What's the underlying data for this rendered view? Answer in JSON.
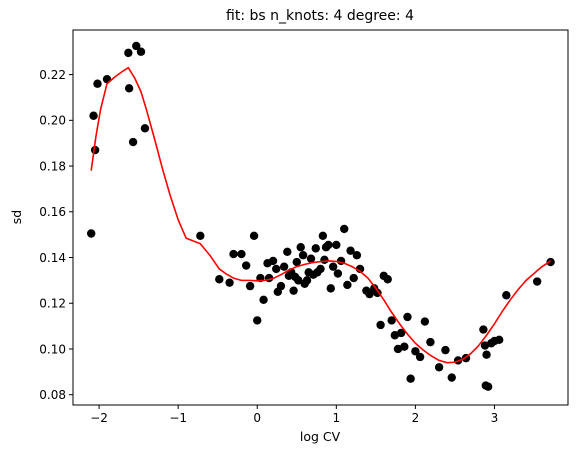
{
  "chart_data": {
    "type": "scatter",
    "title": "fit: bs n_knots: 4 degree: 4",
    "xlabel": "log CV",
    "ylabel": "sd",
    "xlim": [
      -2.33,
      3.93
    ],
    "ylim": [
      0.0755,
      0.2395
    ],
    "xticks": [
      -2,
      -1,
      0,
      1,
      2,
      3
    ],
    "xtick_labels": [
      "−2",
      "−1",
      "0",
      "1",
      "2",
      "3"
    ],
    "yticks": [
      0.08,
      0.1,
      0.12,
      0.14,
      0.16,
      0.18,
      0.2,
      0.22
    ],
    "ytick_labels": [
      "0.08",
      "0.10",
      "0.12",
      "0.14",
      "0.16",
      "0.18",
      "0.20",
      "0.22"
    ],
    "grid": false,
    "legend": false,
    "colors": {
      "points": "#000000",
      "fit": "#ff0000"
    },
    "series": [
      {
        "kind": "scatter",
        "points": [
          [
            -2.1,
            0.1505
          ],
          [
            -2.07,
            0.202
          ],
          [
            -2.05,
            0.187
          ],
          [
            -2.02,
            0.216
          ],
          [
            -1.9,
            0.218
          ],
          [
            -1.63,
            0.2295
          ],
          [
            -1.62,
            0.214
          ],
          [
            -1.57,
            0.1905
          ],
          [
            -1.53,
            0.2325
          ],
          [
            -1.47,
            0.23
          ],
          [
            -1.42,
            0.1965
          ],
          [
            -0.72,
            0.1495
          ],
          [
            -0.48,
            0.1305
          ],
          [
            -0.35,
            0.129
          ],
          [
            -0.3,
            0.1415
          ],
          [
            -0.2,
            0.1415
          ],
          [
            -0.14,
            0.1365
          ],
          [
            -0.09,
            0.1275
          ],
          [
            -0.04,
            0.1495
          ],
          [
            0.0,
            0.1125
          ],
          [
            0.04,
            0.131
          ],
          [
            0.08,
            0.1215
          ],
          [
            0.13,
            0.1375
          ],
          [
            0.15,
            0.131
          ],
          [
            0.2,
            0.1385
          ],
          [
            0.24,
            0.135
          ],
          [
            0.26,
            0.125
          ],
          [
            0.3,
            0.1275
          ],
          [
            0.34,
            0.136
          ],
          [
            0.38,
            0.1425
          ],
          [
            0.4,
            0.132
          ],
          [
            0.43,
            0.1335
          ],
          [
            0.46,
            0.1255
          ],
          [
            0.48,
            0.1315
          ],
          [
            0.5,
            0.138
          ],
          [
            0.52,
            0.13
          ],
          [
            0.55,
            0.1445
          ],
          [
            0.58,
            0.141
          ],
          [
            0.6,
            0.1285
          ],
          [
            0.63,
            0.13
          ],
          [
            0.65,
            0.1335
          ],
          [
            0.68,
            0.1395
          ],
          [
            0.71,
            0.1325
          ],
          [
            0.74,
            0.144
          ],
          [
            0.76,
            0.1335
          ],
          [
            0.8,
            0.135
          ],
          [
            0.83,
            0.1495
          ],
          [
            0.85,
            0.139
          ],
          [
            0.87,
            0.1445
          ],
          [
            0.9,
            0.1455
          ],
          [
            0.93,
            0.1265
          ],
          [
            0.96,
            0.136
          ],
          [
            1.0,
            0.1455
          ],
          [
            1.02,
            0.133
          ],
          [
            1.06,
            0.1385
          ],
          [
            1.1,
            0.1525
          ],
          [
            1.14,
            0.128
          ],
          [
            1.18,
            0.143
          ],
          [
            1.22,
            0.131
          ],
          [
            1.26,
            0.141
          ],
          [
            1.3,
            0.135
          ],
          [
            1.38,
            0.1255
          ],
          [
            1.42,
            0.124
          ],
          [
            1.48,
            0.1265
          ],
          [
            1.52,
            0.1245
          ],
          [
            1.56,
            0.1105
          ],
          [
            1.6,
            0.132
          ],
          [
            1.65,
            0.1305
          ],
          [
            1.7,
            0.1125
          ],
          [
            1.74,
            0.106
          ],
          [
            1.78,
            0.1
          ],
          [
            1.82,
            0.107
          ],
          [
            1.86,
            0.101
          ],
          [
            1.9,
            0.114
          ],
          [
            1.94,
            0.087
          ],
          [
            2.0,
            0.099
          ],
          [
            2.06,
            0.0965
          ],
          [
            2.12,
            0.112
          ],
          [
            2.19,
            0.103
          ],
          [
            2.3,
            0.092
          ],
          [
            2.38,
            0.0995
          ],
          [
            2.46,
            0.0875
          ],
          [
            2.54,
            0.095
          ],
          [
            2.64,
            0.096
          ],
          [
            2.86,
            0.1085
          ],
          [
            2.88,
            0.1015
          ],
          [
            2.89,
            0.084
          ],
          [
            2.9,
            0.0975
          ],
          [
            2.92,
            0.0835
          ],
          [
            2.96,
            0.1025
          ],
          [
            3.0,
            0.1035
          ],
          [
            3.06,
            0.104
          ],
          [
            3.15,
            0.1235
          ],
          [
            3.54,
            0.1295
          ],
          [
            3.71,
            0.138
          ]
        ]
      },
      {
        "kind": "line",
        "points": [
          [
            -2.1,
            0.178
          ],
          [
            -2.04,
            0.193
          ],
          [
            -1.98,
            0.205
          ],
          [
            -1.9,
            0.216
          ],
          [
            -1.8,
            0.219
          ],
          [
            -1.7,
            0.2215
          ],
          [
            -1.63,
            0.223
          ],
          [
            -1.55,
            0.2185
          ],
          [
            -1.47,
            0.2125
          ],
          [
            -1.4,
            0.2045
          ],
          [
            -1.3,
            0.192
          ],
          [
            -1.2,
            0.179
          ],
          [
            -1.1,
            0.167
          ],
          [
            -1.0,
            0.1565
          ],
          [
            -0.9,
            0.1485
          ],
          [
            -0.72,
            0.146
          ],
          [
            -0.6,
            0.141
          ],
          [
            -0.48,
            0.135
          ],
          [
            -0.4,
            0.133
          ],
          [
            -0.3,
            0.131
          ],
          [
            -0.2,
            0.13
          ],
          [
            -0.1,
            0.13
          ],
          [
            0.0,
            0.1298
          ],
          [
            0.1,
            0.13
          ],
          [
            0.2,
            0.1308
          ],
          [
            0.3,
            0.1325
          ],
          [
            0.4,
            0.1345
          ],
          [
            0.5,
            0.136
          ],
          [
            0.6,
            0.137
          ],
          [
            0.7,
            0.1378
          ],
          [
            0.8,
            0.1382
          ],
          [
            0.9,
            0.1385
          ],
          [
            1.0,
            0.1383
          ],
          [
            1.1,
            0.1375
          ],
          [
            1.2,
            0.136
          ],
          [
            1.3,
            0.134
          ],
          [
            1.4,
            0.131
          ],
          [
            1.5,
            0.1265
          ],
          [
            1.6,
            0.1215
          ],
          [
            1.7,
            0.116
          ],
          [
            1.8,
            0.111
          ],
          [
            1.9,
            0.1065
          ],
          [
            2.0,
            0.1025
          ],
          [
            2.1,
            0.0995
          ],
          [
            2.2,
            0.097
          ],
          [
            2.3,
            0.095
          ],
          [
            2.4,
            0.094
          ],
          [
            2.5,
            0.0942
          ],
          [
            2.6,
            0.0955
          ],
          [
            2.7,
            0.098
          ],
          [
            2.8,
            0.1015
          ],
          [
            2.9,
            0.106
          ],
          [
            3.0,
            0.111
          ],
          [
            3.1,
            0.1165
          ],
          [
            3.2,
            0.1215
          ],
          [
            3.3,
            0.126
          ],
          [
            3.4,
            0.13
          ],
          [
            3.5,
            0.133
          ],
          [
            3.6,
            0.136
          ],
          [
            3.71,
            0.1385
          ]
        ]
      }
    ]
  }
}
